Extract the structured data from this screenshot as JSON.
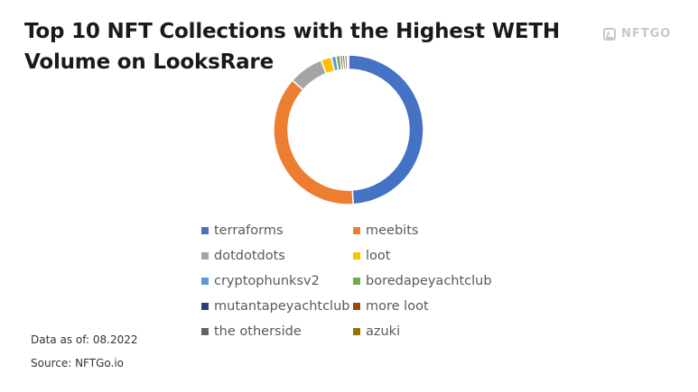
{
  "title": "Top 10 NFT Collections with the Highest WETH Volume on LooksRare",
  "logo": {
    "text": "NFTGO"
  },
  "footer": {
    "data_as_of": "Data as of: 08.2022",
    "source": "Source: NFTGo.io"
  },
  "chart_data": {
    "type": "pie",
    "donut": true,
    "title": "Top 10 NFT Collections with the Highest WETH Volume on LooksRare",
    "legend_position": "bottom",
    "categories": [
      "terraforms",
      "meebits",
      "dotdotdots",
      "loot",
      "cryptophunksv2",
      "boredapeyachtclub",
      "mutantapeyachtclub",
      "more loot",
      "the otherside",
      "azuki"
    ],
    "values": [
      49.0,
      37.5,
      7.5,
      2.3,
      1.0,
      0.9,
      0.5,
      0.5,
      0.5,
      0.3
    ],
    "colors": [
      "#4472C4",
      "#ED7D31",
      "#A5A5A5",
      "#FFC000",
      "#5B9BD5",
      "#70AD47",
      "#264478",
      "#9E480E",
      "#636363",
      "#997300"
    ]
  }
}
